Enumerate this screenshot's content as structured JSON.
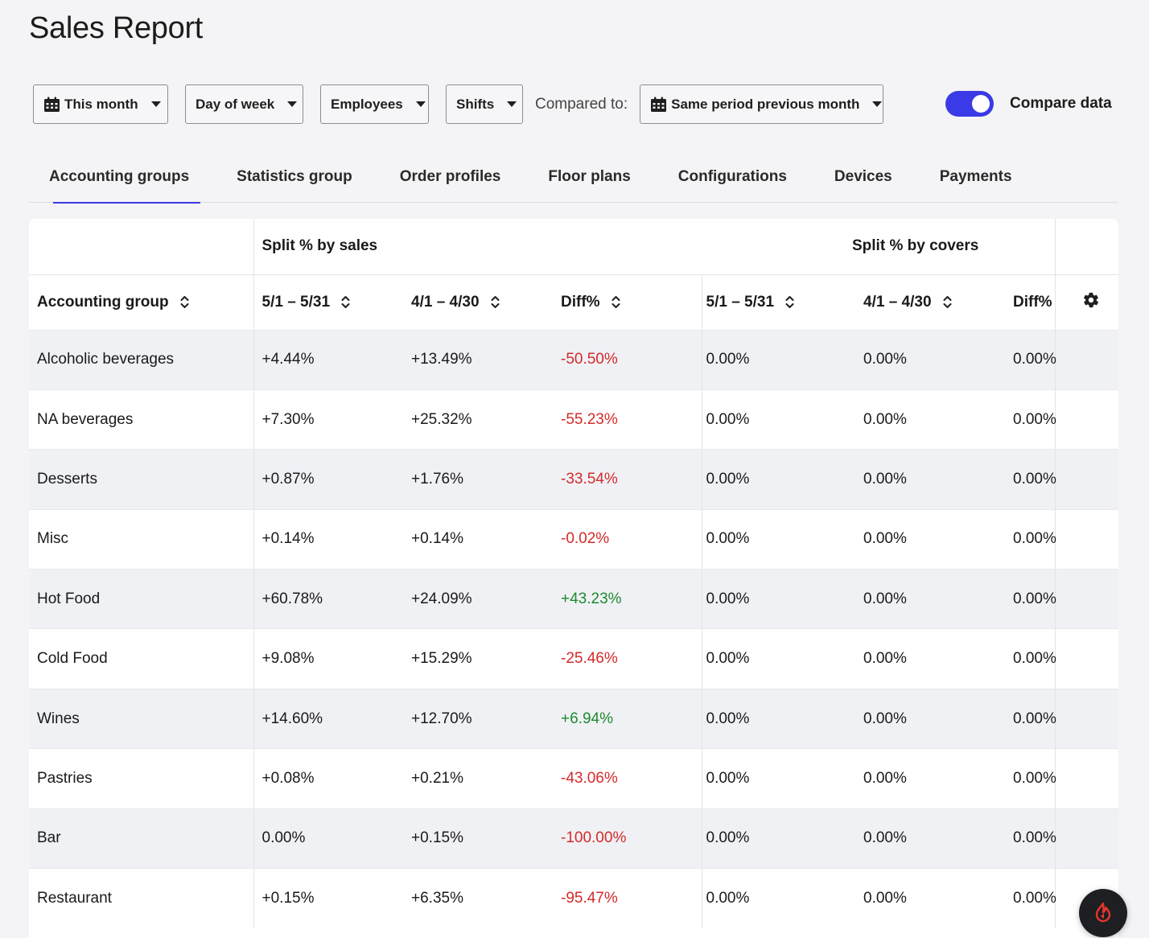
{
  "page": {
    "title": "Sales Report"
  },
  "filters": {
    "period": {
      "label": "This month",
      "icon": "calendar-icon"
    },
    "grouping": {
      "label": "Day of week"
    },
    "employees": {
      "label": "Employees"
    },
    "shifts": {
      "label": "Shifts"
    },
    "compared_to_label": "Compared to:",
    "comparison": {
      "label": "Same period previous month",
      "icon": "calendar-icon"
    },
    "compare_toggle": {
      "label": "Compare data",
      "on": true,
      "color": "#3a3ae6"
    }
  },
  "tabs": [
    {
      "label": "Accounting groups",
      "active": true
    },
    {
      "label": "Statistics group"
    },
    {
      "label": "Order profiles"
    },
    {
      "label": "Floor plans"
    },
    {
      "label": "Configurations"
    },
    {
      "label": "Devices"
    },
    {
      "label": "Payments"
    }
  ],
  "table": {
    "group_headers": {
      "sales": "Split % by sales",
      "covers": "Split % by covers"
    },
    "columns": {
      "group": "Accounting group",
      "sales_current": "5/1 – 5/31",
      "sales_previous": "4/1 – 4/30",
      "sales_diff": "Diff%",
      "covers_current": "5/1 – 5/31",
      "covers_previous": "4/1 – 4/30",
      "covers_diff": "Diff%"
    },
    "rows": [
      {
        "group": "Alcoholic beverages",
        "sales_current": "+4.44%",
        "sales_previous": "+13.49%",
        "sales_diff": "-50.50%",
        "covers_current": "0.00%",
        "covers_previous": "0.00%",
        "covers_diff": "0.00%"
      },
      {
        "group": "NA beverages",
        "sales_current": "+7.30%",
        "sales_previous": "+25.32%",
        "sales_diff": "-55.23%",
        "covers_current": "0.00%",
        "covers_previous": "0.00%",
        "covers_diff": "0.00%"
      },
      {
        "group": "Desserts",
        "sales_current": "+0.87%",
        "sales_previous": "+1.76%",
        "sales_diff": "-33.54%",
        "covers_current": "0.00%",
        "covers_previous": "0.00%",
        "covers_diff": "0.00%"
      },
      {
        "group": "Misc",
        "sales_current": "+0.14%",
        "sales_previous": "+0.14%",
        "sales_diff": "-0.02%",
        "covers_current": "0.00%",
        "covers_previous": "0.00%",
        "covers_diff": "0.00%"
      },
      {
        "group": "Hot Food",
        "sales_current": "+60.78%",
        "sales_previous": "+24.09%",
        "sales_diff": "+43.23%",
        "covers_current": "0.00%",
        "covers_previous": "0.00%",
        "covers_diff": "0.00%"
      },
      {
        "group": "Cold Food",
        "sales_current": "+9.08%",
        "sales_previous": "+15.29%",
        "sales_diff": "-25.46%",
        "covers_current": "0.00%",
        "covers_previous": "0.00%",
        "covers_diff": "0.00%"
      },
      {
        "group": "Wines",
        "sales_current": "+14.60%",
        "sales_previous": "+12.70%",
        "sales_diff": "+6.94%",
        "covers_current": "0.00%",
        "covers_previous": "0.00%",
        "covers_diff": "0.00%"
      },
      {
        "group": "Pastries",
        "sales_current": "+0.08%",
        "sales_previous": "+0.21%",
        "sales_diff": "-43.06%",
        "covers_current": "0.00%",
        "covers_previous": "0.00%",
        "covers_diff": "0.00%"
      },
      {
        "group": "Bar",
        "sales_current": "0.00%",
        "sales_previous": "+0.15%",
        "sales_diff": "-100.00%",
        "covers_current": "0.00%",
        "covers_previous": "0.00%",
        "covers_diff": "0.00%"
      },
      {
        "group": "Restaurant",
        "sales_current": "+0.15%",
        "sales_previous": "+6.35%",
        "sales_diff": "-95.47%",
        "covers_current": "0.00%",
        "covers_previous": "0.00%",
        "covers_diff": "0.00%"
      }
    ],
    "colors": {
      "negative": "#d42a2a",
      "positive": "#1e8a2e"
    },
    "settings_icon": "gear-icon"
  },
  "support_button": {
    "icon": "lightspeed-flame-icon"
  }
}
